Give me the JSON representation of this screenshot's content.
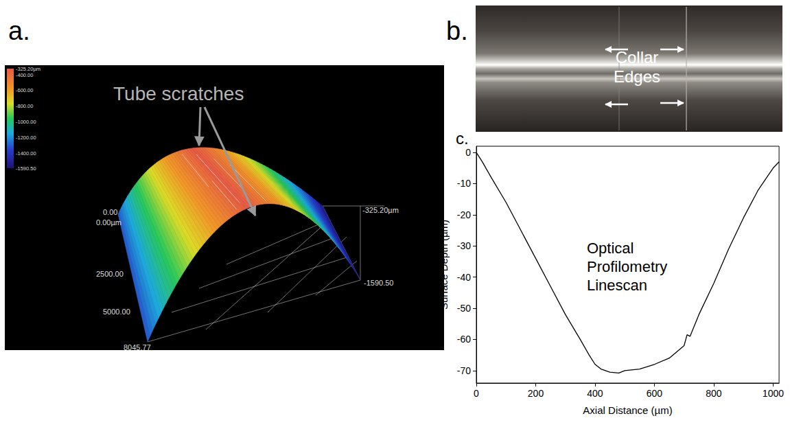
{
  "panel_a": {
    "letter": "a.",
    "annotation": "Tube scratches",
    "colorbar": {
      "range": [
        -1590.5,
        -325.2
      ],
      "ticks": [
        {
          "value": -325.2,
          "label": "-325.20µm"
        },
        {
          "value": -400,
          "label": "-400.00"
        },
        {
          "value": -600,
          "label": "-600.00"
        },
        {
          "value": -800,
          "label": "-800.00"
        },
        {
          "value": -1000,
          "label": "-1000.00"
        },
        {
          "value": -1200,
          "label": "-1200.00"
        },
        {
          "value": -1400,
          "label": "-1400.00"
        },
        {
          "value": -1590.5,
          "label": "-1590.50"
        }
      ]
    },
    "axis_labels": [
      "0.00",
      "0.00µm",
      "2500.00",
      "5000.00",
      "8045.77",
      "-325.20µm",
      "-1590.50"
    ]
  },
  "panel_b": {
    "letter": "b.",
    "label": "Collar Edges"
  },
  "chart_data": {
    "letter": "c.",
    "type": "line",
    "annotation": "Optical Profilometry Linescan",
    "x_label": "Axial Distance (µm)",
    "y_label": "Surface Depth (µm)",
    "x": [
      0,
      20,
      50,
      100,
      150,
      200,
      250,
      300,
      350,
      380,
      400,
      420,
      450,
      480,
      500,
      550,
      600,
      650,
      700,
      710,
      720,
      750,
      800,
      850,
      900,
      950,
      1000,
      1020
    ],
    "values": [
      0,
      -3,
      -8,
      -16,
      -25,
      -34,
      -43,
      -52,
      -60,
      -65,
      -68,
      -69.5,
      -70.5,
      -70.8,
      -70,
      -69.5,
      -68,
      -66,
      -62,
      -58.5,
      -59,
      -52,
      -42,
      -31,
      -21,
      -12,
      -5,
      -3
    ],
    "color": "#000000",
    "xlim": [
      0,
      1020
    ],
    "xticks": [
      0,
      200,
      400,
      600,
      800,
      1000
    ],
    "ylim": [
      -74,
      2
    ],
    "yticks": [
      0,
      -10,
      -20,
      -30,
      -40,
      -50,
      -60,
      -70
    ],
    "grid": false
  }
}
